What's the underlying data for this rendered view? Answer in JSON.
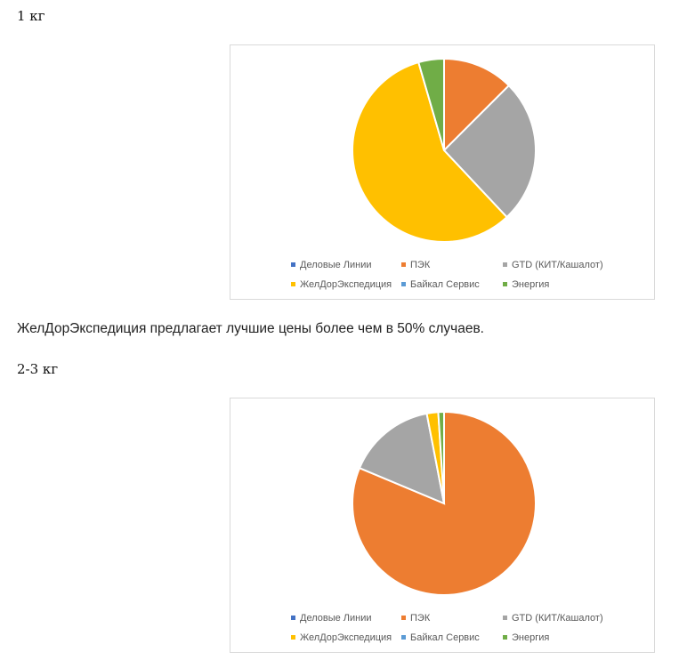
{
  "sections": [
    {
      "heading": "1 кг"
    },
    {
      "heading": "2-3 кг"
    }
  ],
  "paragraph": "ЖелДорЭкспедиция предлагает лучшие цены более чем в 50% случаев.",
  "colors": {
    "Деловые Линии": "#4472c4",
    "ПЭК": "#ed7d31",
    "GTD (КИТ/Кашалот)": "#a5a5a5",
    "ЖелДорЭкспедиция": "#ffc000",
    "Байкал Сервис": "#5b9bd5",
    "Энергия": "#70ad47"
  },
  "chart_data": [
    {
      "type": "pie",
      "categories": [
        "Деловые Линии",
        "ПЭК",
        "GTD (КИТ/Кашалот)",
        "ЖелДорЭкспедиция",
        "Байкал Сервис",
        "Энергия"
      ],
      "values": [
        0,
        12.5,
        25.5,
        57.5,
        0,
        4.5
      ],
      "legend_position": "bottom"
    },
    {
      "type": "pie",
      "categories": [
        "Деловые Линии",
        "ПЭК",
        "GTD (КИТ/Кашалот)",
        "ЖелДорЭкспедиция",
        "Байкал Сервис",
        "Энергия"
      ],
      "values": [
        0,
        80.5,
        15.5,
        2,
        0,
        1
      ],
      "legend_position": "bottom"
    }
  ]
}
